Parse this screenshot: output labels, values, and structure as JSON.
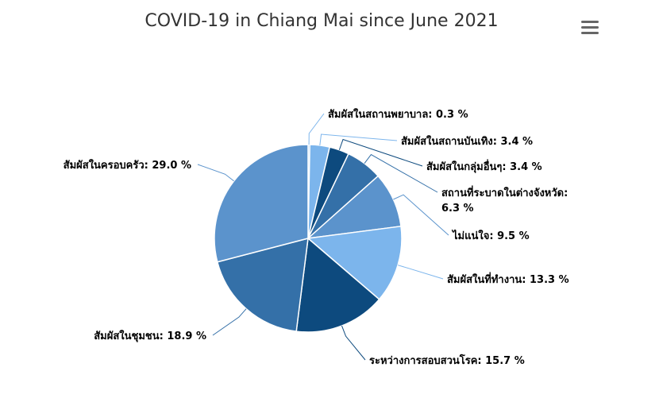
{
  "header": {
    "title": "COVID-19 in Chiang Mai since June 2021",
    "menu_icon": "hamburger-menu-icon"
  },
  "chart_data": {
    "type": "pie",
    "title": "COVID-19 in Chiang Mai since June 2021",
    "unit": "%",
    "slices": [
      {
        "name": "สัมผัสในสถานพยาบาล",
        "value": 0.3,
        "label": "สัมผัสในสถานพยาบาล: 0.3 %",
        "color": "#7cb5ec"
      },
      {
        "name": "สัมผัสในสถานบันเทิง",
        "value": 3.4,
        "label": "สัมผัสในสถานบันเทิง: 3.4 %",
        "color": "#7cb5ec"
      },
      {
        "name": "สัมผัสในกลุ่มอื่นๆ",
        "value": 3.4,
        "label": "สัมผัสในกลุ่มอื่นๆ: 3.4 %",
        "color": "#0d4a7e"
      },
      {
        "name": "สถานที่ระบาดในต่างจังหวัด",
        "value": 6.3,
        "label_lines": [
          "สถานที่ระบาดในต่างจังหวัด:",
          "6.3 %"
        ],
        "color": "#3470a8"
      },
      {
        "name": "ไม่แน่ใจ",
        "value": 9.5,
        "label": "ไม่แน่ใจ: 9.5 %",
        "color": "#5b93cc"
      },
      {
        "name": "สัมผัสในที่ทำงาน",
        "value": 13.3,
        "label": "สัมผัสในที่ทำงาน: 13.3 %",
        "color": "#7cb5ec"
      },
      {
        "name": "ระหว่างการสอบสวนโรค",
        "value": 15.7,
        "label": "ระหว่างการสอบสวนโรค: 15.7 %",
        "color": "#0d4a7e"
      },
      {
        "name": "สัมผัสในชุมชน",
        "value": 18.9,
        "label": "สัมผัสในชุมชน: 18.9 %",
        "color": "#3470a8"
      },
      {
        "name": "สัมผัสในครอบครัว",
        "value": 29.0,
        "label": "สัมผัสในครอบครัว: 29.0 %",
        "color": "#5b93cc"
      }
    ]
  }
}
